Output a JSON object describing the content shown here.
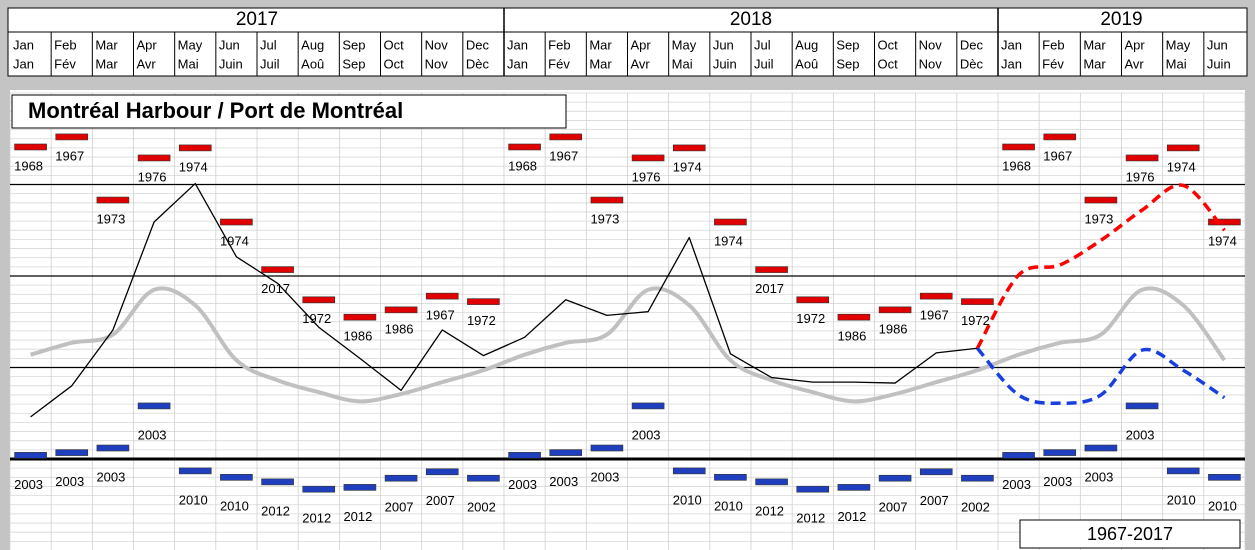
{
  "chart_data": {
    "type": "line",
    "title": "Montréal Harbour / Port de Montréal",
    "years": [
      "2017",
      "2018",
      "2019"
    ],
    "categories": [
      "Jan",
      "Feb",
      "Mar",
      "Apr",
      "May",
      "Jun",
      "Jul",
      "Aug",
      "Sep",
      "Oct",
      "Nov",
      "Dec",
      "Jan",
      "Feb",
      "Mar",
      "Apr",
      "May",
      "Jun",
      "Jul",
      "Aug",
      "Sep",
      "Oct",
      "Nov",
      "Dec",
      "Jan",
      "Feb",
      "Mar",
      "Apr",
      "May",
      "Jun"
    ],
    "categories_fr": [
      "Jan",
      "Fév",
      "Mar",
      "Avr",
      "Mai",
      "Juin",
      "Juil",
      "Aoû",
      "Sep",
      "Oct",
      "Nov",
      "Dèc",
      "Jan",
      "Fév",
      "Mar",
      "Avr",
      "Mai",
      "Juin",
      "Juil",
      "Aoû",
      "Sep",
      "Oct",
      "Nov",
      "Dèc",
      "Jan",
      "Fév",
      "Mar",
      "Avr",
      "Mai",
      "Juin"
    ],
    "ylim": [
      -1,
      4
    ],
    "yticks": [
      0,
      1,
      2,
      3
    ],
    "grid": true,
    "record_period": "1967-2017",
    "record_max": {
      "color": "#e00000",
      "values": [
        3.41,
        3.52,
        2.83,
        3.29,
        3.4,
        2.59,
        2.07,
        1.74,
        1.55,
        1.63,
        1.78,
        1.72
      ],
      "years": [
        "1968",
        "1967",
        "1973",
        "1976",
        "1974",
        "1974",
        "2017",
        "1972",
        "1986",
        "1986",
        "1967",
        "1972"
      ]
    },
    "record_min": {
      "color": "#1f3fbf",
      "values": [
        0.04,
        0.07,
        0.12,
        0.58,
        -0.13,
        -0.2,
        -0.25,
        -0.33,
        -0.31,
        -0.21,
        -0.14,
        -0.21
      ],
      "years": [
        "2003",
        "2003",
        "2003",
        "2003",
        "2010",
        "2010",
        "2012",
        "2012",
        "2012",
        "2007",
        "2007",
        "2002"
      ]
    },
    "series": [
      {
        "color": "#c0c0c0",
        "style": "solid",
        "width": 4,
        "values": [
          1.14,
          1.27,
          1.36,
          1.85,
          1.68,
          1.08,
          0.86,
          0.73,
          0.63,
          0.71,
          0.84,
          0.97,
          1.14,
          1.27,
          1.36,
          1.85,
          1.68,
          1.08,
          0.86,
          0.73,
          0.63,
          0.71,
          0.84,
          0.97,
          1.14,
          1.27,
          1.36,
          1.85,
          1.68,
          1.08
        ]
      },
      {
        "color": "#000000",
        "style": "solid",
        "width": 1.3,
        "values": [
          0.46,
          0.8,
          1.41,
          2.59,
          3.01,
          2.21,
          1.92,
          1.44,
          1.1,
          0.75,
          1.41,
          1.13,
          1.33,
          1.74,
          1.57,
          1.61,
          2.42,
          1.15,
          0.89,
          0.84,
          0.84,
          0.83,
          1.16,
          1.21,
          null,
          null,
          null,
          null,
          null,
          null
        ]
      },
      {
        "color": "#ff0000",
        "style": "dashed",
        "width": 3.5,
        "values": [
          null,
          null,
          null,
          null,
          null,
          null,
          null,
          null,
          null,
          null,
          null,
          null,
          null,
          null,
          null,
          null,
          null,
          null,
          null,
          null,
          null,
          null,
          null,
          1.21,
          2.01,
          2.12,
          2.39,
          2.72,
          2.99,
          2.5
        ]
      },
      {
        "color": "#1a3fe0",
        "style": "dashed",
        "width": 3.5,
        "values": [
          null,
          null,
          null,
          null,
          null,
          null,
          null,
          null,
          null,
          null,
          null,
          null,
          null,
          null,
          null,
          null,
          null,
          null,
          null,
          null,
          null,
          null,
          null,
          1.21,
          0.7,
          0.61,
          0.7,
          1.19,
          0.97,
          0.67
        ]
      }
    ]
  }
}
